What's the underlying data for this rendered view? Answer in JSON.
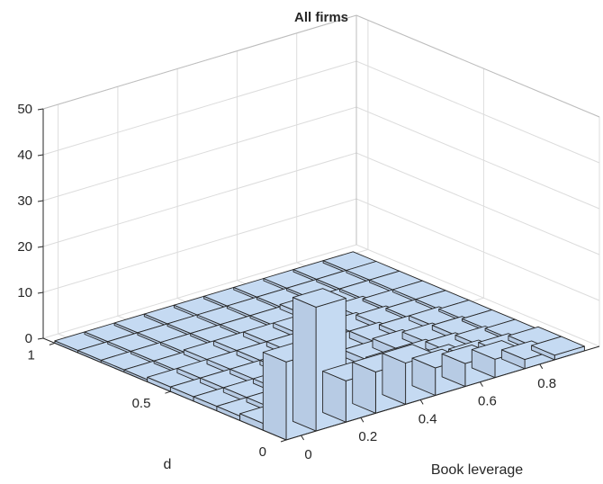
{
  "chart_data": {
    "type": "bar3d",
    "title": "All firms",
    "xlabel": "Book leverage",
    "ylabel": "d",
    "zlabel": "",
    "x_ticks": [
      "0",
      "0.2",
      "0.4",
      "0.6",
      "0.8"
    ],
    "y_ticks": [
      "0",
      "0.5",
      "1"
    ],
    "z_ticks": [
      "0",
      "10",
      "20",
      "30",
      "40",
      "50"
    ],
    "xlim": [
      -0.05,
      1.0
    ],
    "ylim": [
      0,
      1.05
    ],
    "zlim": [
      0,
      50
    ],
    "grid": true,
    "bar_color": "#c5daf2",
    "x_bin_centers": [
      0.0,
      0.1,
      0.2,
      0.3,
      0.4,
      0.5,
      0.6,
      0.7,
      0.8,
      0.9
    ],
    "y_bin_centers": [
      0.05,
      0.15,
      0.25,
      0.35,
      0.45,
      0.55,
      0.65,
      0.75,
      0.85,
      0.95
    ],
    "heights": [
      [
        17,
        1.5,
        1.0,
        1.0,
        1.0,
        1.0,
        0.5,
        0.5,
        0.5,
        0.5
      ],
      [
        27,
        1.5,
        1.0,
        1.0,
        1.0,
        1.0,
        0.5,
        0.5,
        0.5,
        0.5
      ],
      [
        9,
        1.5,
        1.5,
        1.0,
        1.0,
        1.0,
        1.0,
        0.5,
        0.5,
        0.5
      ],
      [
        9,
        2.0,
        1.5,
        1.0,
        1.0,
        1.0,
        1.0,
        0.5,
        0.5,
        0.5
      ],
      [
        9,
        2.0,
        1.5,
        1.5,
        1.0,
        1.0,
        1.0,
        0.5,
        0.5,
        0.5
      ],
      [
        6,
        2.5,
        2.0,
        1.5,
        1.5,
        1.0,
        1.0,
        0.5,
        0.5,
        0.5
      ],
      [
        5,
        3.0,
        2.0,
        2.0,
        1.5,
        1.5,
        1.0,
        1.0,
        0.5,
        0.5
      ],
      [
        4,
        2.0,
        1.5,
        1.5,
        1.0,
        1.0,
        1.0,
        0.5,
        0.5,
        0.5
      ],
      [
        2,
        1.5,
        1.0,
        1.0,
        1.0,
        0.5,
        0.5,
        0.5,
        0.5,
        0.5
      ],
      [
        1,
        1.0,
        0.5,
        0.5,
        0.5,
        0.5,
        0.5,
        0.5,
        0.5,
        0.5
      ]
    ]
  }
}
